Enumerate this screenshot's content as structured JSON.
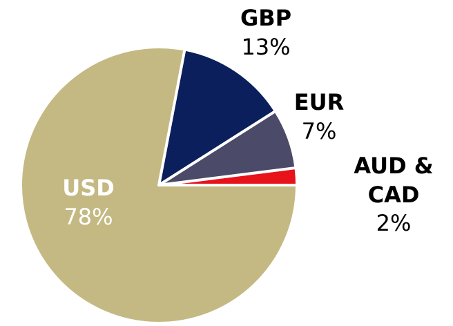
{
  "chart_data": {
    "type": "pie",
    "categories": [
      "USD",
      "GBP",
      "EUR",
      "AUD & CAD"
    ],
    "values": [
      78,
      13,
      7,
      2
    ],
    "value_labels": [
      "78%",
      "13%",
      "7%",
      "2%"
    ],
    "colors": [
      "#c5b983",
      "#0a1f5c",
      "#4b4a68",
      "#e8121b"
    ]
  }
}
